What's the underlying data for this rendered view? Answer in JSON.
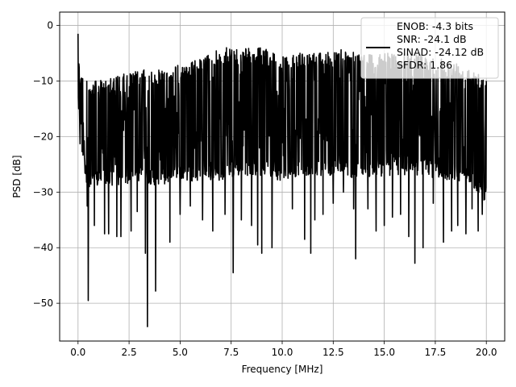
{
  "chart_data": {
    "type": "line",
    "title": "",
    "xlabel": "Frequency [MHz]",
    "ylabel": "PSD [dB]",
    "xlim": [
      -0.9,
      20.9
    ],
    "ylim": [
      -56.8,
      2.4
    ],
    "xticks": [
      0.0,
      2.5,
      5.0,
      7.5,
      10.0,
      12.5,
      15.0,
      17.5,
      20.0
    ],
    "xtick_labels": [
      "0.0",
      "2.5",
      "5.0",
      "7.5",
      "10.0",
      "12.5",
      "15.0",
      "17.5",
      "20.0"
    ],
    "yticks": [
      0,
      -10,
      -20,
      -30,
      -40,
      -50
    ],
    "ytick_labels": [
      "0",
      "−10",
      "−20",
      "−30",
      "−40",
      "−50"
    ],
    "grid": true,
    "legend_position": "upper-right",
    "legend": [
      "ENOB: -4.3 bits",
      "SNR: -24.1 dB",
      "SINAD: -24.12 dB",
      "SFDR: 1.86"
    ],
    "series": [
      {
        "color": "#000000",
        "x": [
          0.0,
          0.02,
          0.05,
          0.1,
          0.2,
          0.3,
          0.5,
          0.7,
          1.0,
          1.5,
          2.0,
          2.5,
          3.0,
          3.4,
          4.0,
          5.0,
          6.0,
          7.0,
          7.6,
          8.0,
          9.0,
          10.0,
          11.0,
          11.5,
          12.0,
          13.0,
          13.6,
          14.0,
          15.0,
          16.0,
          16.5,
          17.0,
          18.0,
          19.0,
          19.5,
          20.0
        ],
        "y": [
          -1.5,
          -17,
          -8.5,
          -20,
          -14,
          -26,
          -49.5,
          -22,
          -19,
          -21,
          -18,
          -20,
          -25,
          -54,
          -18,
          -18,
          -15,
          -14,
          -44,
          -15,
          -15,
          -16,
          -15,
          -41,
          -16,
          -15,
          -42,
          -16,
          -15,
          -16,
          -42.5,
          -15,
          -16,
          -17,
          -30,
          -10
        ],
        "envelope_upper": [
          [
            0.0,
            -1.5
          ],
          [
            0.1,
            -8
          ],
          [
            0.5,
            -10
          ],
          [
            1.0,
            -10
          ],
          [
            2.0,
            -9
          ],
          [
            3.0,
            -8
          ],
          [
            4.0,
            -8
          ],
          [
            5.0,
            -7
          ],
          [
            6.0,
            -6
          ],
          [
            7.0,
            -4
          ],
          [
            8.0,
            -4
          ],
          [
            9.0,
            -4
          ],
          [
            10.0,
            -5
          ],
          [
            11.0,
            -5
          ],
          [
            12.0,
            -5
          ],
          [
            13.0,
            -4
          ],
          [
            14.0,
            -5
          ],
          [
            15.0,
            -5
          ],
          [
            16.0,
            -5
          ],
          [
            17.0,
            -5
          ],
          [
            18.0,
            -6
          ],
          [
            19.0,
            -7
          ],
          [
            20.0,
            -9
          ]
        ],
        "envelope_lower": [
          [
            0.0,
            -15
          ],
          [
            0.1,
            -22
          ],
          [
            0.5,
            -30
          ],
          [
            1.0,
            -29
          ],
          [
            2.0,
            -29
          ],
          [
            3.0,
            -28
          ],
          [
            4.0,
            -29
          ],
          [
            5.0,
            -28
          ],
          [
            6.0,
            -28
          ],
          [
            7.0,
            -28
          ],
          [
            8.0,
            -27
          ],
          [
            9.0,
            -27
          ],
          [
            10.0,
            -28
          ],
          [
            11.0,
            -27
          ],
          [
            12.0,
            -27
          ],
          [
            13.0,
            -27
          ],
          [
            14.0,
            -28
          ],
          [
            15.0,
            -27
          ],
          [
            16.0,
            -27
          ],
          [
            17.0,
            -27
          ],
          [
            18.0,
            -28
          ],
          [
            19.0,
            -28
          ],
          [
            20.0,
            -32
          ]
        ],
        "dips": [
          [
            0.45,
            -32.5
          ],
          [
            0.5,
            -49.5
          ],
          [
            0.8,
            -36
          ],
          [
            1.3,
            -37.5
          ],
          [
            1.5,
            -37.5
          ],
          [
            1.9,
            -38
          ],
          [
            2.1,
            -38
          ],
          [
            2.6,
            -37
          ],
          [
            2.9,
            -33.5
          ],
          [
            3.3,
            -41
          ],
          [
            3.4,
            -54.2
          ],
          [
            3.8,
            -47.8
          ],
          [
            4.5,
            -39
          ],
          [
            5.0,
            -34
          ],
          [
            5.5,
            -32.5
          ],
          [
            6.1,
            -35
          ],
          [
            6.6,
            -37
          ],
          [
            7.2,
            -34
          ],
          [
            7.6,
            -44.5
          ],
          [
            8.0,
            -35
          ],
          [
            8.5,
            -36
          ],
          [
            8.8,
            -39.5
          ],
          [
            9.0,
            -41
          ],
          [
            9.5,
            -40
          ],
          [
            10.5,
            -33
          ],
          [
            11.1,
            -38.5
          ],
          [
            11.4,
            -41
          ],
          [
            11.6,
            -35
          ],
          [
            12.0,
            -34
          ],
          [
            12.5,
            -32
          ],
          [
            13.0,
            -30
          ],
          [
            13.5,
            -33
          ],
          [
            13.6,
            -42
          ],
          [
            14.2,
            -33
          ],
          [
            14.6,
            -37
          ],
          [
            15.0,
            -36
          ],
          [
            15.4,
            -34.5
          ],
          [
            15.8,
            -34
          ],
          [
            16.2,
            -38
          ],
          [
            16.5,
            -42.8
          ],
          [
            16.9,
            -40
          ],
          [
            17.4,
            -32
          ],
          [
            17.9,
            -39
          ],
          [
            18.3,
            -37
          ],
          [
            18.6,
            -36
          ],
          [
            19.0,
            -37.5
          ],
          [
            19.3,
            -33
          ],
          [
            19.6,
            -37
          ],
          [
            19.8,
            -34
          ]
        ]
      }
    ]
  }
}
